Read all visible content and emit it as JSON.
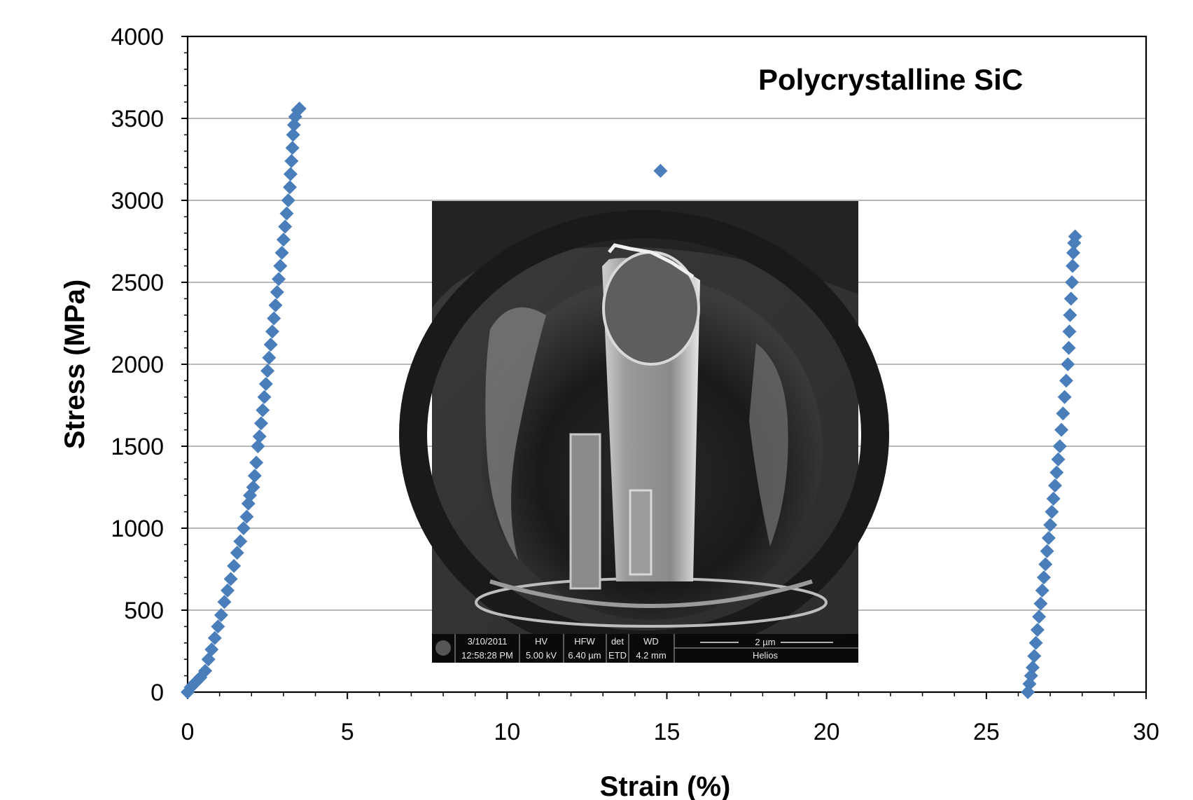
{
  "chart_data": {
    "type": "scatter",
    "title": "",
    "xlabel": "Strain (%)",
    "ylabel": "Stress (MPa)",
    "xlim": [
      0,
      30
    ],
    "ylim": [
      0,
      4000
    ],
    "x_ticks": [
      "0",
      "5",
      "10",
      "15",
      "20",
      "25",
      "30"
    ],
    "y_ticks": [
      "0",
      "500",
      "1000",
      "1500",
      "2000",
      "2500",
      "3000",
      "3500",
      "4000"
    ],
    "grid": "horizontal",
    "legend": "none",
    "marker": "diamond",
    "color": "#4a7ebb",
    "annotation": "Polycrystalline SiC",
    "series": [
      {
        "points": [
          [
            0.0,
            0
          ],
          [
            0.1,
            30
          ],
          [
            0.25,
            60
          ],
          [
            0.4,
            90
          ],
          [
            0.55,
            130
          ],
          [
            0.65,
            200
          ],
          [
            0.75,
            260
          ],
          [
            0.85,
            330
          ],
          [
            0.95,
            400
          ],
          [
            1.05,
            470
          ],
          [
            1.15,
            550
          ],
          [
            1.25,
            620
          ],
          [
            1.35,
            690
          ],
          [
            1.45,
            770
          ],
          [
            1.55,
            850
          ],
          [
            1.65,
            920
          ],
          [
            1.75,
            1000
          ],
          [
            1.85,
            1070
          ],
          [
            1.9,
            1150
          ],
          [
            1.95,
            1200
          ],
          [
            2.05,
            1250
          ],
          [
            2.1,
            1320
          ],
          [
            2.15,
            1400
          ],
          [
            2.2,
            1500
          ],
          [
            2.25,
            1560
          ],
          [
            2.3,
            1640
          ],
          [
            2.35,
            1720
          ],
          [
            2.4,
            1800
          ],
          [
            2.45,
            1880
          ],
          [
            2.5,
            1960
          ],
          [
            2.55,
            2040
          ],
          [
            2.6,
            2120
          ],
          [
            2.65,
            2200
          ],
          [
            2.7,
            2280
          ],
          [
            2.75,
            2360
          ],
          [
            2.8,
            2440
          ],
          [
            2.85,
            2520
          ],
          [
            2.9,
            2600
          ],
          [
            2.95,
            2680
          ],
          [
            3.0,
            2760
          ],
          [
            3.05,
            2840
          ],
          [
            3.1,
            2920
          ],
          [
            3.15,
            3000
          ],
          [
            3.2,
            3080
          ],
          [
            3.22,
            3160
          ],
          [
            3.25,
            3240
          ],
          [
            3.28,
            3320
          ],
          [
            3.3,
            3400
          ],
          [
            3.33,
            3460
          ],
          [
            3.37,
            3510
          ],
          [
            3.45,
            3550
          ],
          [
            3.5,
            3560
          ]
        ]
      },
      {
        "points": [
          [
            14.8,
            3180
          ]
        ]
      },
      {
        "points": [
          [
            26.3,
            0
          ],
          [
            26.35,
            50
          ],
          [
            26.4,
            100
          ],
          [
            26.45,
            150
          ],
          [
            26.5,
            220
          ],
          [
            26.55,
            300
          ],
          [
            26.6,
            380
          ],
          [
            26.65,
            460
          ],
          [
            26.7,
            540
          ],
          [
            26.75,
            620
          ],
          [
            26.8,
            700
          ],
          [
            26.85,
            780
          ],
          [
            26.9,
            860
          ],
          [
            26.95,
            940
          ],
          [
            27.0,
            1020
          ],
          [
            27.05,
            1100
          ],
          [
            27.1,
            1180
          ],
          [
            27.15,
            1260
          ],
          [
            27.2,
            1340
          ],
          [
            27.25,
            1420
          ],
          [
            27.3,
            1500
          ],
          [
            27.35,
            1600
          ],
          [
            27.4,
            1700
          ],
          [
            27.45,
            1800
          ],
          [
            27.5,
            1900
          ],
          [
            27.55,
            2000
          ],
          [
            27.58,
            2100
          ],
          [
            27.6,
            2200
          ],
          [
            27.62,
            2300
          ],
          [
            27.65,
            2400
          ],
          [
            27.68,
            2500
          ],
          [
            27.7,
            2600
          ],
          [
            27.72,
            2680
          ],
          [
            27.75,
            2740
          ],
          [
            27.78,
            2780
          ]
        ]
      }
    ]
  },
  "inset": {
    "description_labels": {
      "date": "3/10/2011",
      "time": "12:58:28 PM",
      "hv_label": "HV",
      "hv_value": "5.00 kV",
      "hfw_label": "HFW",
      "hfw_value": "6.40 µm",
      "det_label": "det",
      "det_value": "ETD",
      "wd_label": "WD",
      "wd_value": "4.2 mm",
      "scale": "2 µm",
      "instrument": "Helios"
    }
  }
}
